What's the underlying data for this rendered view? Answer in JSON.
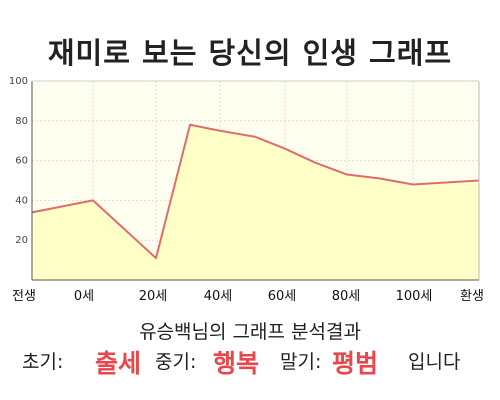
{
  "title": "재미로 보는 당신의 인생 그래프",
  "chart_data": {
    "type": "area",
    "x_labels": [
      "전생",
      "0세",
      "20세",
      "40세",
      "60세",
      "80세",
      "100세",
      "환생"
    ],
    "y_ticks": [
      20,
      40,
      60,
      80,
      100
    ],
    "ylim": [
      0,
      100
    ],
    "series": [
      {
        "points": [
          [
            "전생",
            34
          ],
          [
            "0세",
            40
          ],
          [
            "20세",
            11
          ],
          [
            "30세",
            78
          ],
          [
            "40세",
            75
          ],
          [
            "50세",
            72
          ],
          [
            "60세",
            66
          ],
          [
            "70세",
            59
          ],
          [
            "80세",
            53
          ],
          [
            "90세",
            51
          ],
          [
            "100세",
            48
          ],
          [
            "환생",
            50
          ]
        ]
      }
    ],
    "grid": true,
    "colors": {
      "fill": "#ffffc8",
      "line": "#e06c6c",
      "plot_bg": "#fffff0",
      "grid": "#dddddd"
    }
  },
  "result": {
    "heading": "유승백님의 그래프 분석결과",
    "early_label": "초기:",
    "early_value": "출세",
    "mid_label": "중기:",
    "mid_value": "행복",
    "late_label": "말기:",
    "late_value": "평범",
    "ending": "입니다",
    "highlight_color": "#e8474b"
  }
}
